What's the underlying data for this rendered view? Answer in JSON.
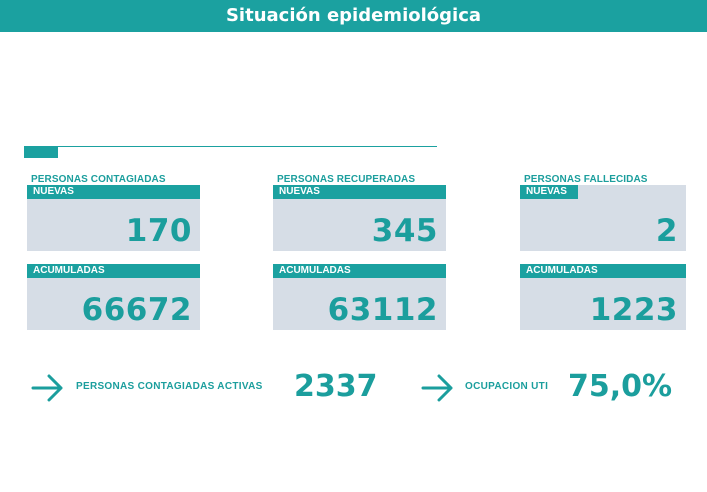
{
  "header": {
    "title": "Situación epidemiológica"
  },
  "columns": [
    {
      "title": "PERSONAS CONTAGIADAS",
      "nuevas_label": "NUEVAS",
      "nuevas_value": "170",
      "acumuladas_label": "ACUMULADAS",
      "acumuladas_value": "66672"
    },
    {
      "title": "PERSONAS RECUPERADAS",
      "nuevas_label": "NUEVAS",
      "nuevas_value": "345",
      "acumuladas_label": "ACUMULADAS",
      "acumuladas_value": "63112"
    },
    {
      "title": "PERSONAS FALLECIDAS",
      "nuevas_label": "NUEVAS",
      "nuevas_value": "2",
      "acumuladas_label": "ACUMULADAS",
      "acumuladas_value": "1223"
    }
  ],
  "footer": {
    "activas_label": "PERSONAS CONTAGIADAS ACTIVAS",
    "activas_value": "2337",
    "uti_label": "OCUPACION UTI",
    "uti_value": "75,0%"
  },
  "colors": {
    "accent": "#1ba1a0",
    "card_bg": "#d6dde6",
    "text": "#1b9e9d"
  },
  "icons": {
    "footer_arrow": "arrow-right-icon"
  }
}
